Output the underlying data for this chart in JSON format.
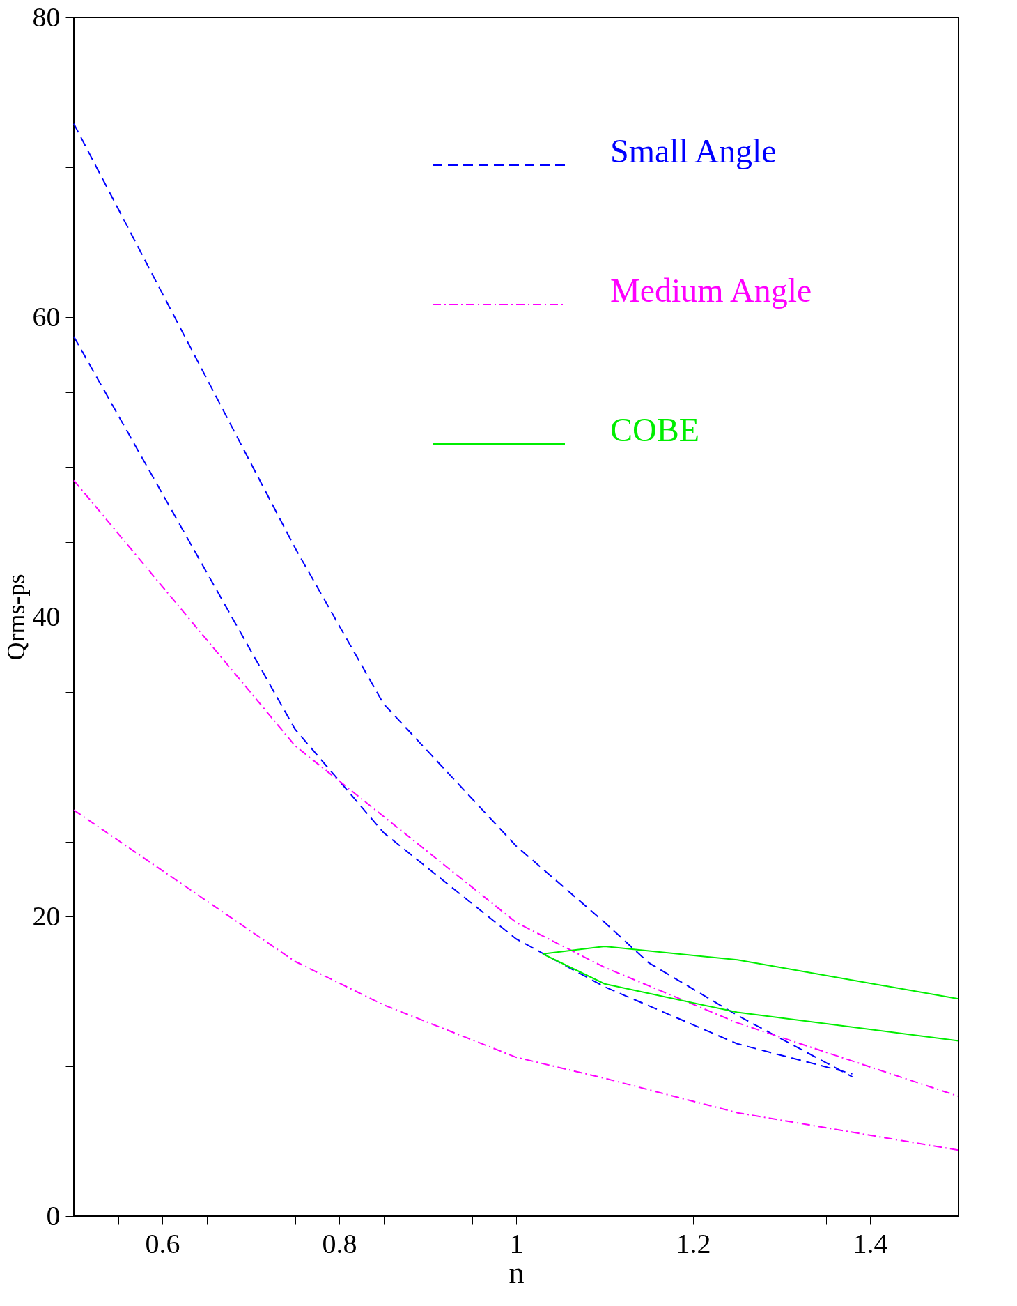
{
  "chart_data": {
    "type": "line",
    "xlabel": "n",
    "ylabel": "Qrms-ps",
    "xlim": [
      0.5,
      1.5
    ],
    "ylim": [
      0,
      80
    ],
    "xticks": [
      {
        "value": 0.55,
        "label": null
      },
      0.6,
      {
        "value": 0.65,
        "label": null
      },
      {
        "value": 0.7,
        "label": null
      },
      {
        "value": 0.75,
        "label": null
      },
      0.8,
      {
        "value": 0.85,
        "label": null
      },
      {
        "value": 0.9,
        "label": null
      },
      {
        "value": 0.95,
        "label": null
      },
      1,
      {
        "value": 1.05,
        "label": null
      },
      {
        "value": 1.1,
        "label": null
      },
      {
        "value": 1.15,
        "label": null
      },
      1.2,
      {
        "value": 1.25,
        "label": null
      },
      {
        "value": 1.3,
        "label": null
      },
      {
        "value": 1.35,
        "label": null
      },
      1.4,
      {
        "value": 1.45,
        "label": null
      }
    ],
    "yticks": [
      0,
      {
        "value": 5,
        "label": null
      },
      {
        "value": 10,
        "label": null
      },
      {
        "value": 15,
        "label": null
      },
      20,
      {
        "value": 25,
        "label": null
      },
      {
        "value": 30,
        "label": null
      },
      {
        "value": 35,
        "label": null
      },
      40,
      {
        "value": 45,
        "label": null
      },
      {
        "value": 50,
        "label": null
      },
      {
        "value": 55,
        "label": null
      },
      60,
      {
        "value": 65,
        "label": null
      },
      {
        "value": 70,
        "label": null
      },
      {
        "value": 75,
        "label": null
      },
      80
    ],
    "grid": false,
    "legend": "top right",
    "marker": "none",
    "series": [
      {
        "name": "Small Angle",
        "color": "#0000ff",
        "line_style": "dashed",
        "x": [
          0.5,
          0.75,
          0.85,
          1.0,
          1.1,
          1.15,
          1.25,
          1.38
        ],
        "values": [
          72.9,
          44.6,
          34.2,
          24.7,
          19.6,
          16.9,
          13.4,
          9.3
        ]
      },
      {
        "color": "#0000ff",
        "line_style": "dashed",
        "x": [
          0.5,
          0.75,
          0.85,
          1.0,
          1.1,
          1.25,
          1.38
        ],
        "values": [
          58.7,
          32.5,
          25.6,
          18.5,
          15.3,
          11.5,
          9.5
        ]
      },
      {
        "name": "Medium Angle",
        "color": "#ff00ff",
        "line_style": "dashdot",
        "x": [
          0.5,
          0.75,
          1.0,
          1.1,
          1.25,
          1.5
        ],
        "values": [
          49.1,
          31.4,
          19.6,
          16.6,
          12.9,
          8.0
        ]
      },
      {
        "color": "#ff00ff",
        "line_style": "dashdot",
        "x": [
          0.5,
          0.75,
          0.85,
          1.0,
          1.1,
          1.25,
          1.5
        ],
        "values": [
          27.1,
          17.0,
          14.1,
          10.6,
          9.2,
          6.9,
          4.4
        ]
      },
      {
        "name": "COBE",
        "color": "#00ee00",
        "line_style": "solid",
        "x": [
          1.03,
          1.1,
          1.25,
          1.5
        ],
        "values": [
          17.5,
          18.0,
          17.1,
          14.5
        ]
      },
      {
        "color": "#00ee00",
        "line_style": "solid",
        "x": [
          1.03,
          1.1,
          1.25,
          1.5
        ],
        "values": [
          17.5,
          15.5,
          13.6,
          11.7
        ]
      }
    ]
  }
}
